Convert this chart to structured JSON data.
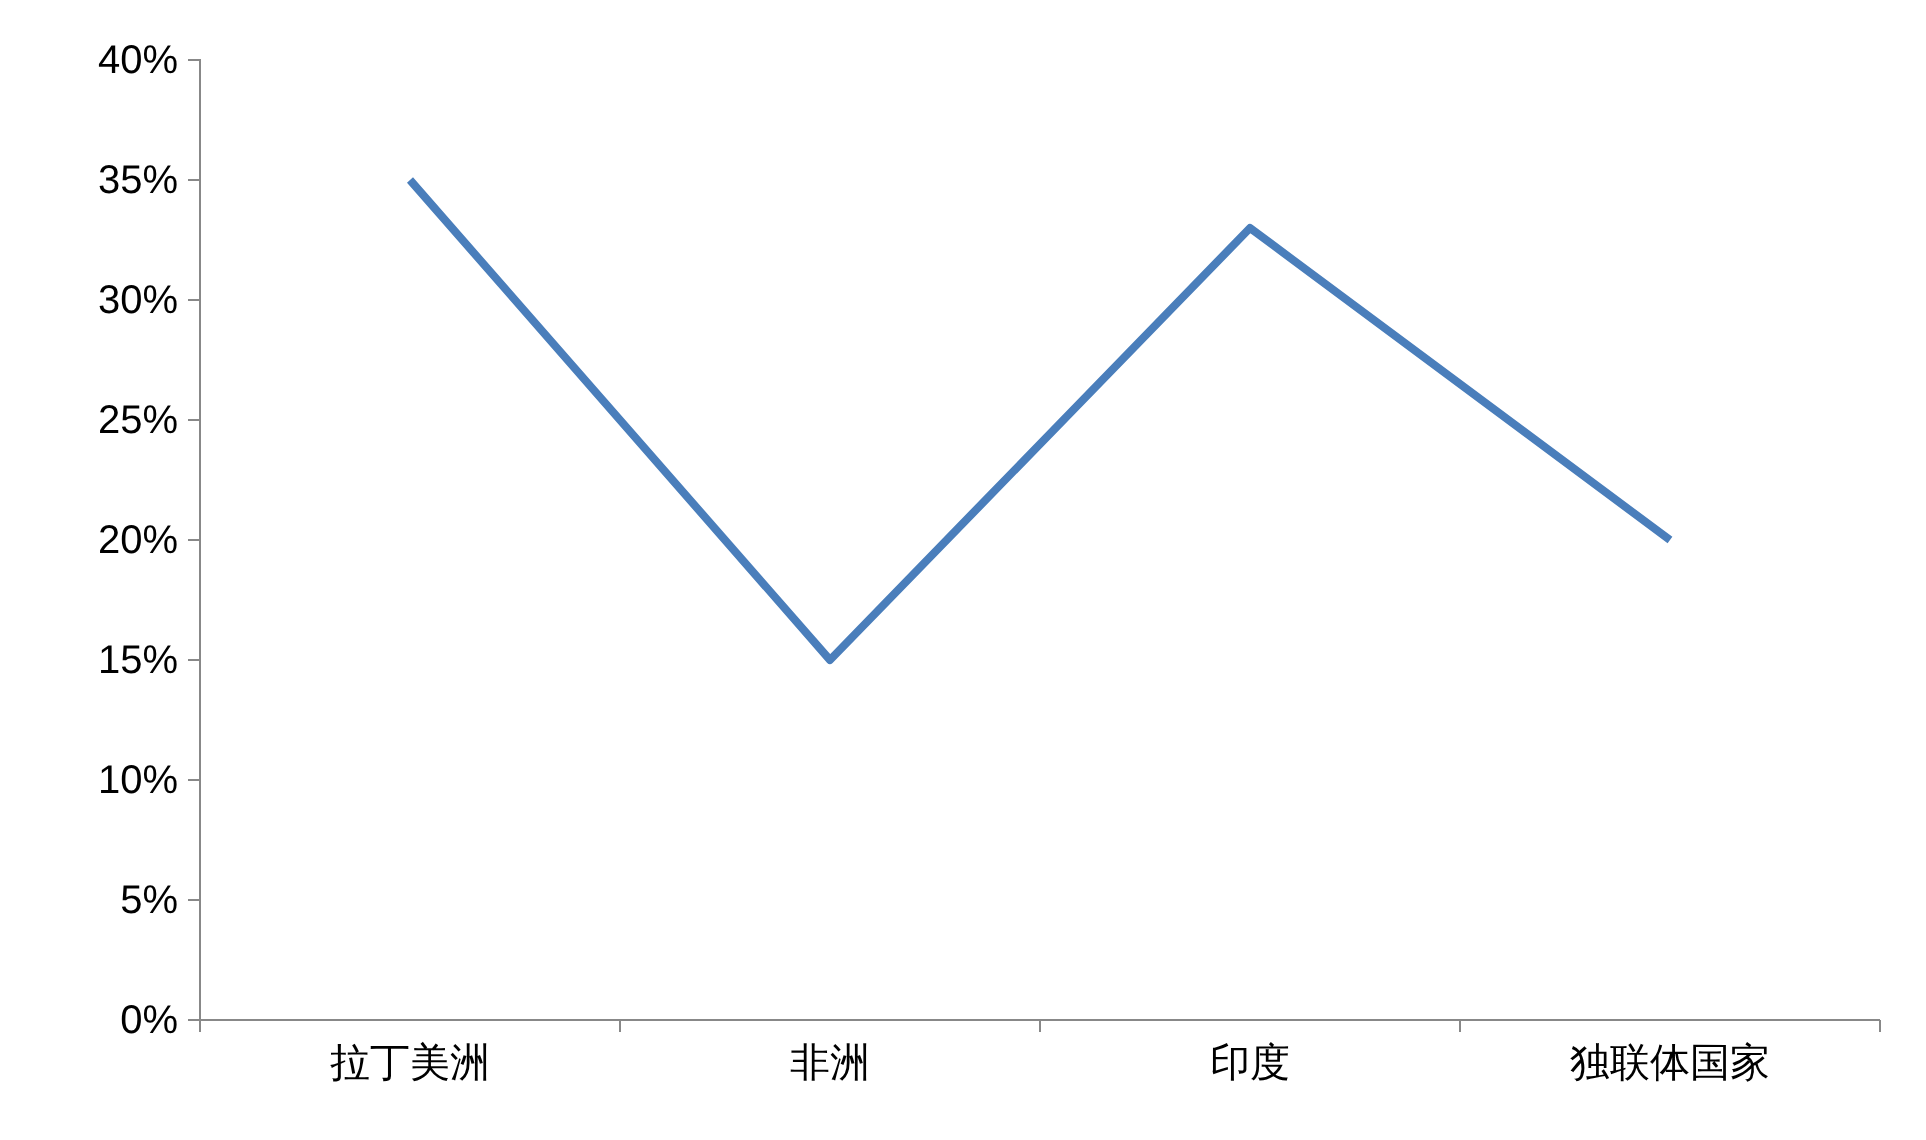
{
  "chart_data": {
    "type": "line",
    "categories": [
      "拉丁美洲",
      "非洲",
      "印度",
      "独联体国家"
    ],
    "series": [
      {
        "color": "#4a7ebb",
        "values": [
          35,
          15,
          33,
          20
        ]
      }
    ],
    "ylim": [
      0,
      40
    ],
    "yticks": [
      {
        "value": 0,
        "label": "0%"
      },
      {
        "value": 5,
        "label": "5%"
      },
      {
        "value": 10,
        "label": "10%"
      },
      {
        "value": 15,
        "label": "15%"
      },
      {
        "value": 20,
        "label": "20%"
      },
      {
        "value": 25,
        "label": "25%"
      },
      {
        "value": 30,
        "label": "30%"
      },
      {
        "value": 35,
        "label": "35%"
      },
      {
        "value": 40,
        "label": "40%"
      }
    ],
    "grid": false,
    "legend": false,
    "marker": "none",
    "line_style": "solid"
  }
}
